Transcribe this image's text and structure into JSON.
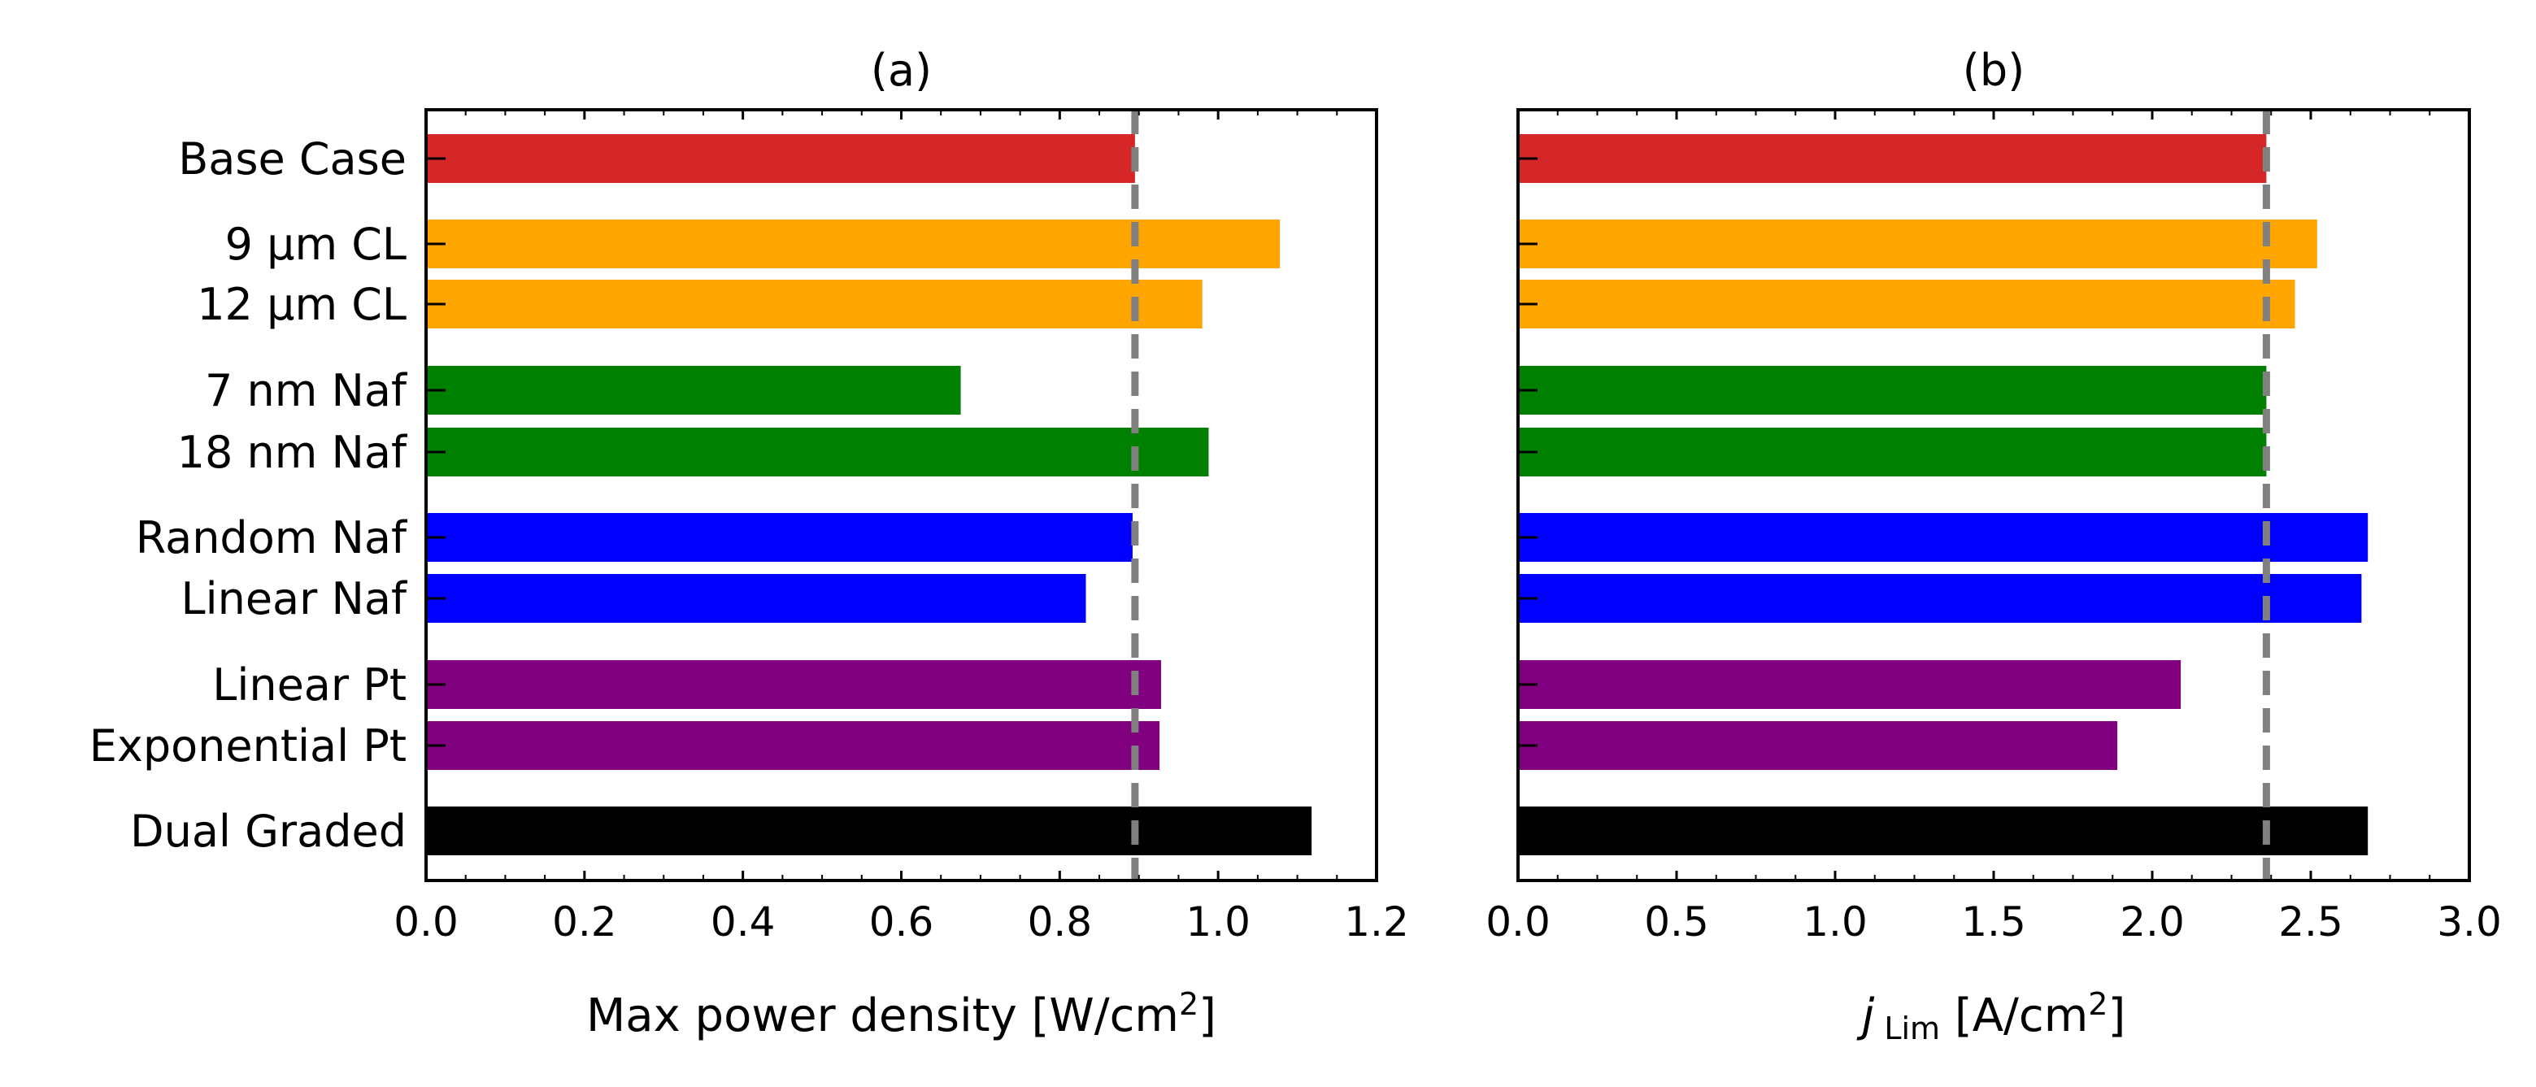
{
  "chart_data": [
    {
      "type": "bar",
      "orientation": "horizontal",
      "title": "(a)",
      "xlabel": "Max power density [W/cm²]",
      "xlabel_parts": {
        "main": "Max power density [W/cm",
        "sup": "2",
        "tail": "]"
      },
      "xlim": [
        0.0,
        1.2
      ],
      "xticks": [
        "0.0",
        "0.2",
        "0.4",
        "0.6",
        "0.8",
        "1.0",
        "1.2"
      ],
      "categories": [
        "Base Case",
        "9 μm CL",
        "12 μm CL",
        "7 nm Naf",
        "18 nm Naf",
        "Random Naf",
        "Linear Naf",
        "Linear Pt",
        "Exponential Pt",
        "Dual Graded"
      ],
      "values": [
        0.895,
        1.078,
        0.98,
        0.675,
        0.988,
        0.892,
        0.833,
        0.928,
        0.926,
        1.118
      ],
      "colors": [
        "#d62728",
        "#ffa500",
        "#ffa500",
        "#008000",
        "#008000",
        "#0000ff",
        "#0000ff",
        "#800080",
        "#800080",
        "#000000"
      ],
      "reference_line": {
        "x": 0.895,
        "style": "dashed",
        "color": "#808080"
      },
      "grid": false,
      "legend": "none"
    },
    {
      "type": "bar",
      "orientation": "horizontal",
      "title": "(b)",
      "xlabel": "j Lim [A/cm²]",
      "xlabel_parts": {
        "sym": "j",
        "sub": "Lim",
        "unit": "[A/cm",
        "sup": "2",
        "tail": "]"
      },
      "xlim": [
        0.0,
        3.0
      ],
      "xticks": [
        "0.0",
        "0.5",
        "1.0",
        "1.5",
        "2.0",
        "2.5",
        "3.0"
      ],
      "categories": [
        "Base Case",
        "9 μm CL",
        "12 μm CL",
        "7 nm Naf",
        "18 nm Naf",
        "Random Naf",
        "Linear Naf",
        "Linear Pt",
        "Exponential Pt",
        "Dual Graded"
      ],
      "values": [
        2.36,
        2.52,
        2.45,
        2.36,
        2.36,
        2.68,
        2.66,
        2.09,
        1.89,
        2.68
      ],
      "colors": [
        "#d62728",
        "#ffa500",
        "#ffa500",
        "#008000",
        "#008000",
        "#0000ff",
        "#0000ff",
        "#800080",
        "#800080",
        "#000000"
      ],
      "reference_line": {
        "x": 2.36,
        "style": "dashed",
        "color": "#808080"
      },
      "grid": false,
      "legend": "none"
    }
  ]
}
